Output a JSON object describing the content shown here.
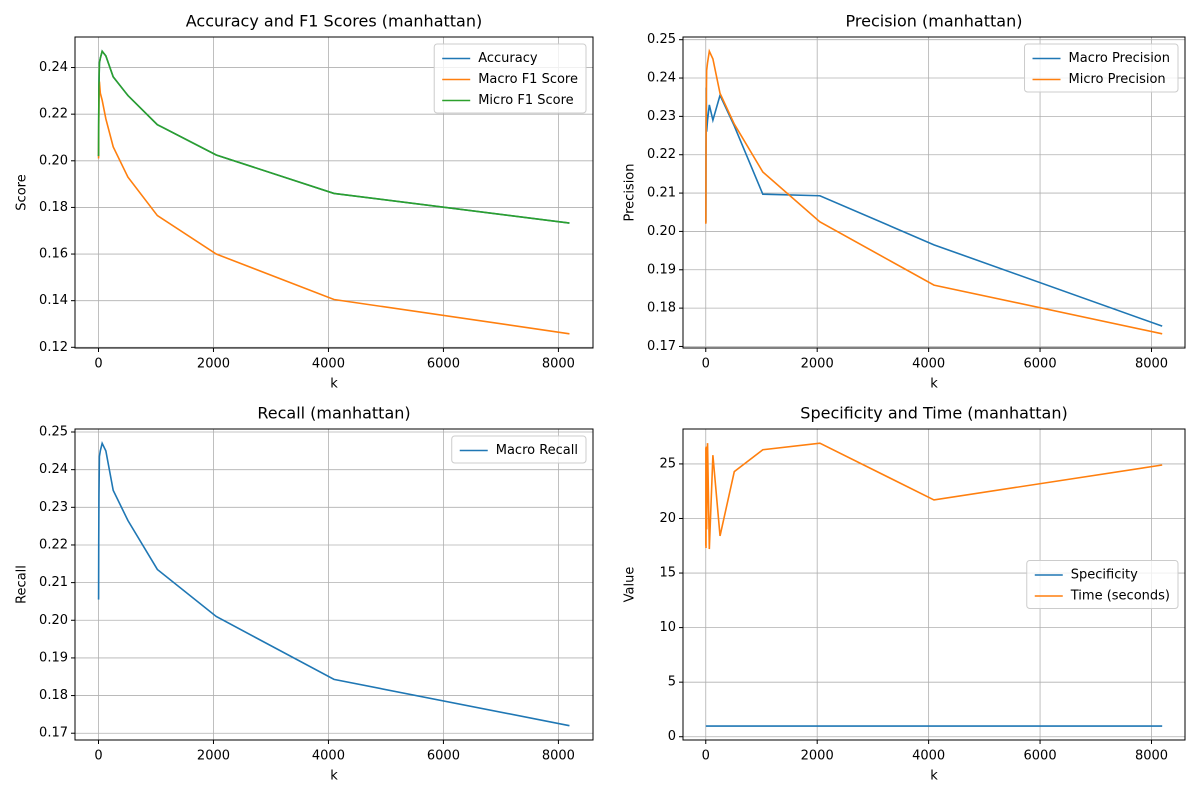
{
  "chart_data": [
    {
      "type": "line",
      "title": "Accuracy and F1 Scores (manhattan)",
      "x_label": "k",
      "y_label": "Score",
      "x": [
        1,
        2,
        4,
        8,
        16,
        32,
        64,
        128,
        256,
        512,
        1024,
        2048,
        4096,
        8192
      ],
      "series": [
        {
          "name": "Accuracy",
          "color": "#1f77b4",
          "values": [
            0.202,
            0.203,
            0.218,
            0.232,
            0.242,
            0.244,
            0.247,
            0.245,
            0.236,
            0.228,
            0.2155,
            0.2025,
            0.186,
            0.1733
          ]
        },
        {
          "name": "Macro F1 Score",
          "color": "#ff7f0e",
          "values": [
            0.201,
            0.202,
            0.214,
            0.226,
            0.234,
            0.229,
            0.226,
            0.218,
            0.206,
            0.193,
            0.1765,
            0.16,
            0.1405,
            0.1258
          ]
        },
        {
          "name": "Micro F1 Score",
          "color": "#2ca02c",
          "values": [
            0.202,
            0.203,
            0.218,
            0.232,
            0.242,
            0.244,
            0.247,
            0.245,
            0.236,
            0.228,
            0.2155,
            0.2025,
            0.186,
            0.1733
          ]
        }
      ],
      "xlim": [
        -408.55,
        8601.55
      ],
      "xticks": [
        0,
        2000,
        4000,
        6000,
        8000
      ],
      "ylim": [
        0.1197,
        0.2531
      ],
      "yticks": [
        0.12,
        0.14,
        0.16,
        0.18,
        {
          "value": 0.2,
          "label": "0.20"
        },
        0.22,
        0.24
      ],
      "grid": true,
      "legend": "upper right"
    },
    {
      "type": "line",
      "title": "Precision (manhattan)",
      "x_label": "k",
      "y_label": "Precision",
      "x": [
        1,
        2,
        4,
        8,
        16,
        32,
        64,
        128,
        256,
        512,
        1024,
        2048,
        4096,
        8192
      ],
      "series": [
        {
          "name": "Macro Precision",
          "color": "#1f77b4",
          "values": [
            0.2025,
            0.2025,
            0.218,
            0.2375,
            0.226,
            0.229,
            0.233,
            0.229,
            0.2355,
            0.2275,
            0.2097,
            0.2093,
            0.1965,
            0.1753
          ]
        },
        {
          "name": "Micro Precision",
          "color": "#ff7f0e",
          "values": [
            0.202,
            0.203,
            0.218,
            0.232,
            0.242,
            0.244,
            0.247,
            0.245,
            0.236,
            0.228,
            0.2155,
            0.2025,
            0.186,
            0.1733
          ]
        }
      ],
      "xlim": [
        -408.55,
        8601.55
      ],
      "xticks": [
        0,
        2000,
        4000,
        6000,
        8000
      ],
      "ylim": [
        0.1696,
        0.2507
      ],
      "yticks": [
        0.17,
        0.18,
        0.19,
        {
          "value": 0.2,
          "label": "0.20"
        },
        0.21,
        0.22,
        0.23,
        0.24,
        0.25
      ],
      "grid": true,
      "legend": "upper right"
    },
    {
      "type": "line",
      "title": "Recall (manhattan)",
      "x_label": "k",
      "y_label": "Recall",
      "x": [
        1,
        2,
        4,
        8,
        16,
        32,
        64,
        128,
        256,
        512,
        1024,
        2048,
        4096,
        8192
      ],
      "series": [
        {
          "name": "Macro Recall",
          "color": "#1f77b4",
          "values": [
            0.2055,
            0.206,
            0.22,
            0.233,
            0.2435,
            0.245,
            0.247,
            0.245,
            0.2345,
            0.2265,
            0.2135,
            0.201,
            0.1843,
            0.172
          ]
        }
      ],
      "xlim": [
        -408.55,
        8601.55
      ],
      "xticks": [
        0,
        2000,
        4000,
        6000,
        8000
      ],
      "ylim": [
        0.1682,
        0.2508
      ],
      "yticks": [
        0.17,
        0.18,
        0.19,
        {
          "value": 0.2,
          "label": "0.20"
        },
        0.21,
        0.22,
        0.23,
        0.24,
        0.25
      ],
      "grid": true,
      "legend": "upper right"
    },
    {
      "type": "line",
      "title": "Specificity and Time (manhattan)",
      "x_label": "k",
      "y_label": "Value",
      "x": [
        1,
        2,
        4,
        8,
        16,
        32,
        64,
        128,
        256,
        512,
        1024,
        2048,
        4096,
        8192
      ],
      "series": [
        {
          "name": "Specificity",
          "color": "#1f77b4",
          "values": [
            0.98,
            0.98,
            0.98,
            0.98,
            0.98,
            0.98,
            0.98,
            0.98,
            0.98,
            0.98,
            0.98,
            0.98,
            0.98,
            0.98
          ]
        },
        {
          "name": "Time (seconds)",
          "color": "#ff7f0e",
          "values": [
            17.5,
            26.5,
            17.3,
            26.6,
            19,
            26.9,
            17.2,
            25.8,
            18.4,
            24.3,
            26.3,
            26.9,
            21.7,
            24.9
          ]
        }
      ],
      "xlim": [
        -408.55,
        8601.55
      ],
      "xticks": [
        0,
        2000,
        4000,
        6000,
        8000
      ],
      "ylim": [
        -0.3,
        28.2
      ],
      "yticks": [
        0,
        5,
        10,
        15,
        20,
        25
      ],
      "grid": true,
      "legend": "center right"
    }
  ]
}
